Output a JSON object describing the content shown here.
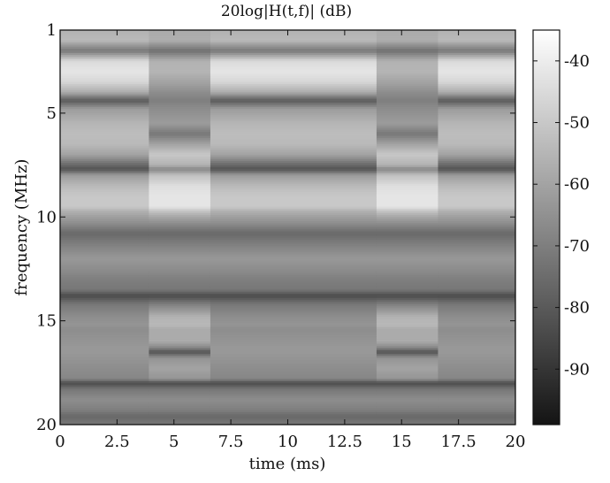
{
  "chart_data": {
    "type": "heatmap",
    "title": "20log|H(t,f)| (dB)",
    "xlabel": "time (ms)",
    "ylabel": "frequency (MHz)",
    "xlim": [
      0,
      20
    ],
    "ylim": [
      1,
      20
    ],
    "y_axis_inverted": true,
    "x_ticks": [
      "0",
      "2.5",
      "5",
      "7.5",
      "10",
      "12.5",
      "15",
      "17.5",
      "20"
    ],
    "x_tick_values": [
      0,
      2.5,
      5,
      7.5,
      10,
      12.5,
      15,
      17.5,
      20
    ],
    "y_ticks": [
      "1",
      "5",
      "10",
      "15",
      "20"
    ],
    "y_tick_values": [
      1,
      5,
      10,
      15,
      20
    ],
    "colorbar": {
      "ticks": [
        "-40",
        "-50",
        "-60",
        "-70",
        "-80",
        "-90"
      ],
      "tick_values": [
        -40,
        -50,
        -60,
        -70,
        -80,
        -90
      ],
      "range": [
        -99,
        -35
      ],
      "colormap": "gray"
    },
    "time_segments": [
      {
        "t_start": 0,
        "t_end": 3.9,
        "state": "A"
      },
      {
        "t_start": 3.9,
        "t_end": 6.6,
        "state": "B"
      },
      {
        "t_start": 6.6,
        "t_end": 13.9,
        "state": "A"
      },
      {
        "t_start": 13.9,
        "t_end": 16.6,
        "state": "B"
      },
      {
        "t_start": 16.6,
        "t_end": 20,
        "state": "A"
      }
    ],
    "profiles_db": {
      "freq_mhz": [
        1,
        1.5,
        2,
        2.5,
        3,
        3.5,
        4,
        4.4,
        4.8,
        5.5,
        6,
        6.5,
        7,
        7.5,
        7.7,
        8,
        8.5,
        9,
        9.5,
        9.8,
        10.3,
        10.8,
        11.3,
        12,
        12.5,
        13,
        13.5,
        13.8,
        14.2,
        14.8,
        15.2,
        15.4,
        16,
        16.3,
        16.5,
        16.8,
        17.3,
        17.8,
        18,
        18.3,
        18.8,
        19.3,
        19.6,
        20
      ],
      "A": [
        -56,
        -54,
        -72,
        -45,
        -42,
        -46,
        -58,
        -80,
        -62,
        -55,
        -53,
        -54,
        -60,
        -76,
        -82,
        -62,
        -54,
        -50,
        -50,
        -58,
        -66,
        -76,
        -70,
        -63,
        -66,
        -70,
        -72,
        -84,
        -72,
        -66,
        -64,
        -66,
        -64,
        -63,
        -63,
        -64,
        -66,
        -68,
        -84,
        -72,
        -66,
        -70,
        -76,
        -72
      ],
      "B": [
        -58,
        -57,
        -74,
        -56,
        -55,
        -60,
        -66,
        -70,
        -66,
        -62,
        -72,
        -60,
        -50,
        -56,
        -68,
        -52,
        -44,
        -42,
        -42,
        -54,
        -66,
        -76,
        -70,
        -63,
        -66,
        -70,
        -72,
        -84,
        -70,
        -56,
        -54,
        -58,
        -58,
        -68,
        -82,
        -64,
        -60,
        -64,
        -84,
        -72,
        -66,
        -70,
        -76,
        -72
      ]
    }
  }
}
